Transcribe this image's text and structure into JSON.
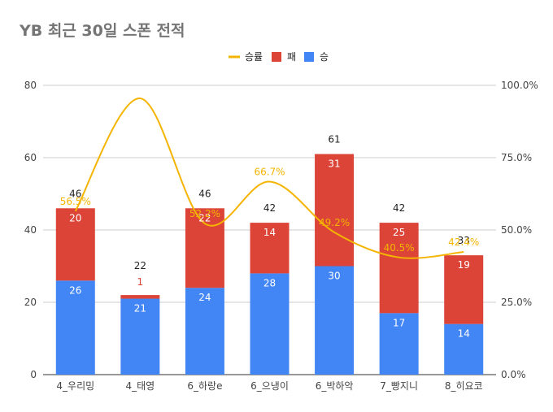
{
  "chart_data": {
    "type": "bar",
    "stacked": true,
    "title": "YB 최근 30일 스폰 전적",
    "categories": [
      "4_우리밍",
      "4_태영",
      "6_하랑e",
      "6_으냉이",
      "6_박하악",
      "7_빵지니",
      "8_히요코"
    ],
    "series": [
      {
        "name": "승",
        "color": "#4285f4",
        "values": [
          26,
          21,
          24,
          28,
          30,
          17,
          14
        ]
      },
      {
        "name": "패",
        "color": "#db4437",
        "values": [
          20,
          1,
          22,
          14,
          31,
          25,
          19
        ]
      }
    ],
    "totals": [
      46,
      22,
      46,
      42,
      61,
      42,
      33
    ],
    "line_series": {
      "name": "승률",
      "color": "#f4b400",
      "values": [
        56.5,
        95.5,
        52.2,
        66.7,
        49.2,
        40.5,
        42.4
      ],
      "labels": [
        "56.5%",
        "",
        "52.2%",
        "66.7%",
        "49.2%",
        "40.5%",
        "42.4%"
      ]
    },
    "legend": {
      "position": "top",
      "items": [
        "승률",
        "패",
        "승"
      ]
    },
    "y_left": {
      "min": 0,
      "max": 80,
      "ticks": [
        0,
        20,
        40,
        60,
        80
      ],
      "tick_labels": [
        "0",
        "20",
        "40",
        "60",
        "80"
      ]
    },
    "y_right": {
      "min": 0,
      "max": 100,
      "ticks": [
        0,
        25,
        50,
        75,
        100
      ],
      "tick_labels": [
        "0.0%",
        "25.0%",
        "50.0%",
        "75.0%",
        "100.0%"
      ]
    },
    "grid": true
  }
}
